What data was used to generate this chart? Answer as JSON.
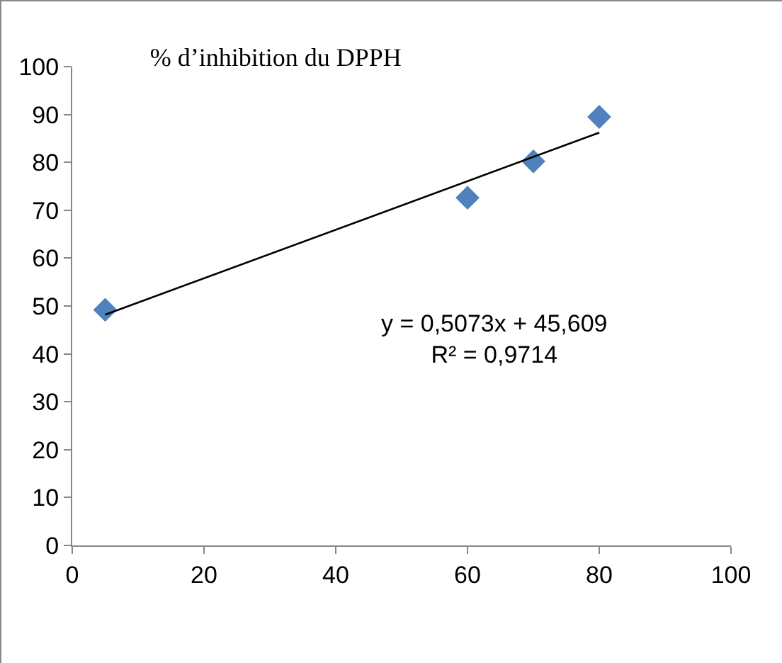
{
  "chart_data": {
    "type": "scatter",
    "title": "% d’inhibition du DPPH",
    "x": [
      5,
      60,
      70,
      80
    ],
    "series": [
      {
        "color": "#4f81bd",
        "marker": "diamond",
        "values": [
          49.2,
          72.6,
          80.2,
          89.5
        ]
      },
      {
        "type": "line",
        "color": "#000000",
        "marker": "none",
        "x": [
          5,
          80
        ],
        "values": [
          48.2,
          86.2
        ]
      }
    ],
    "xlim": [
      0,
      100
    ],
    "xticks": [
      0,
      20,
      40,
      60,
      80,
      100
    ],
    "ylim": [
      0,
      100
    ],
    "yticks": [
      0,
      10,
      20,
      30,
      40,
      50,
      60,
      70,
      80,
      90,
      100
    ],
    "annotations": [
      "y = 0,5073x + 45,609\nR² = 0,9714"
    ]
  }
}
